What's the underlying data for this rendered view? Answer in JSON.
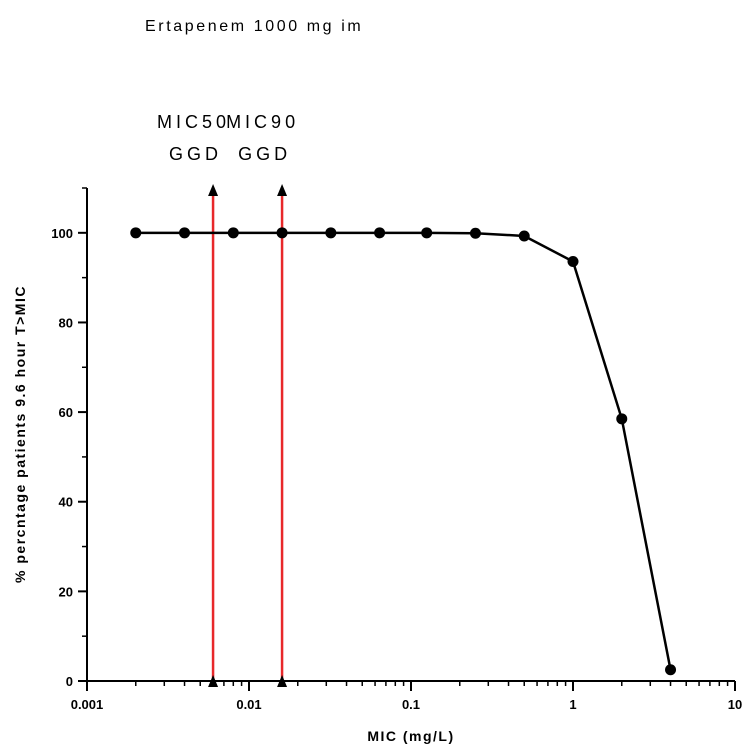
{
  "chart_data": {
    "type": "line",
    "title": "Ertapenem 1000 mg im",
    "xlabel": "MIC (mg/L)",
    "ylabel": "% percntage patients 9.6 hour T>MIC",
    "x_scale": "log",
    "xlim": [
      0.001,
      10
    ],
    "ylim": [
      0,
      110
    ],
    "x_ticks": [
      {
        "value": 0.001,
        "label": "0.001"
      },
      {
        "value": 0.01,
        "label": "0.01"
      },
      {
        "value": 0.1,
        "label": "0.1"
      },
      {
        "value": 1,
        "label": "1"
      },
      {
        "value": 10,
        "label": "10"
      }
    ],
    "y_ticks": [
      {
        "value": 0,
        "label": "0"
      },
      {
        "value": 20,
        "label": "20"
      },
      {
        "value": 40,
        "label": "40"
      },
      {
        "value": 60,
        "label": "60"
      },
      {
        "value": 80,
        "label": "80"
      },
      {
        "value": 100,
        "label": "100"
      }
    ],
    "grid": false,
    "legend": "none",
    "series": [
      {
        "color": "#000000",
        "x": [
          0.002,
          0.004,
          0.008,
          0.016,
          0.032,
          0.064,
          0.125,
          0.25,
          0.5,
          1,
          2,
          4
        ],
        "y": [
          100,
          100,
          100,
          100,
          100,
          100,
          100,
          99.9,
          99.3,
          93.6,
          58.5,
          2.5
        ]
      }
    ],
    "vertical_markers": [
      {
        "x": 0.006,
        "label_line1": "MIC50",
        "label_line2": "GGD",
        "color": "#e8282a"
      },
      {
        "x": 0.016,
        "label_line1": "MIC90",
        "label_line2": "GGD",
        "color": "#e8282a"
      }
    ]
  }
}
